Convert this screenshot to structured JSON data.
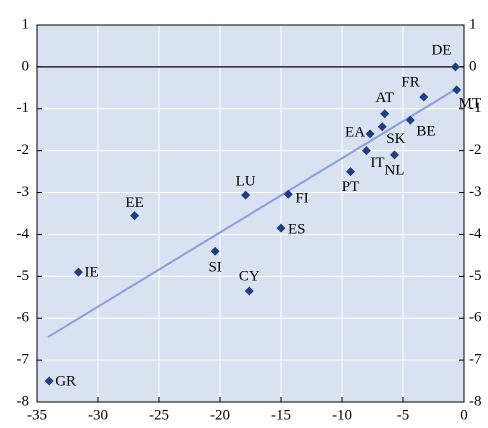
{
  "chart_data": {
    "type": "scatter",
    "xlim": [
      -35,
      0
    ],
    "xticks": [
      -35,
      -30,
      -25,
      -20,
      -15,
      -10,
      -5,
      0
    ],
    "ylim": [
      -8,
      1
    ],
    "yticks": [
      1,
      0,
      -1,
      -2,
      -3,
      -4,
      -5,
      -6,
      -7,
      -8
    ],
    "grid": true,
    "series": [
      {
        "color": "#1f3f80",
        "labels": [
          "DE",
          "MT",
          "FR",
          "BE",
          "AT",
          "SK",
          "EA",
          "IT",
          "NL",
          "PT",
          "FI",
          "LU",
          "ES",
          "EE",
          "SI",
          "IE",
          "CY",
          "GR"
        ],
        "x": [
          -0.7,
          -0.6,
          -3.3,
          -4.4,
          -6.5,
          -6.7,
          -7.7,
          -8.0,
          -5.7,
          -9.3,
          -14.4,
          -17.9,
          -15.0,
          -27.0,
          -20.4,
          -31.6,
          -17.6,
          -34.0
        ],
        "values": [
          0.0,
          -0.55,
          -0.72,
          -1.27,
          -1.12,
          -1.43,
          -1.6,
          -2.0,
          -2.1,
          -2.5,
          -3.04,
          -3.06,
          -3.85,
          -3.55,
          -4.4,
          -4.9,
          -5.35,
          -7.5
        ]
      }
    ],
    "trend_line": {
      "color": "#8e9ed8",
      "x": [
        -34.1,
        -0.5
      ],
      "values": [
        -6.45,
        -0.5
      ]
    }
  }
}
